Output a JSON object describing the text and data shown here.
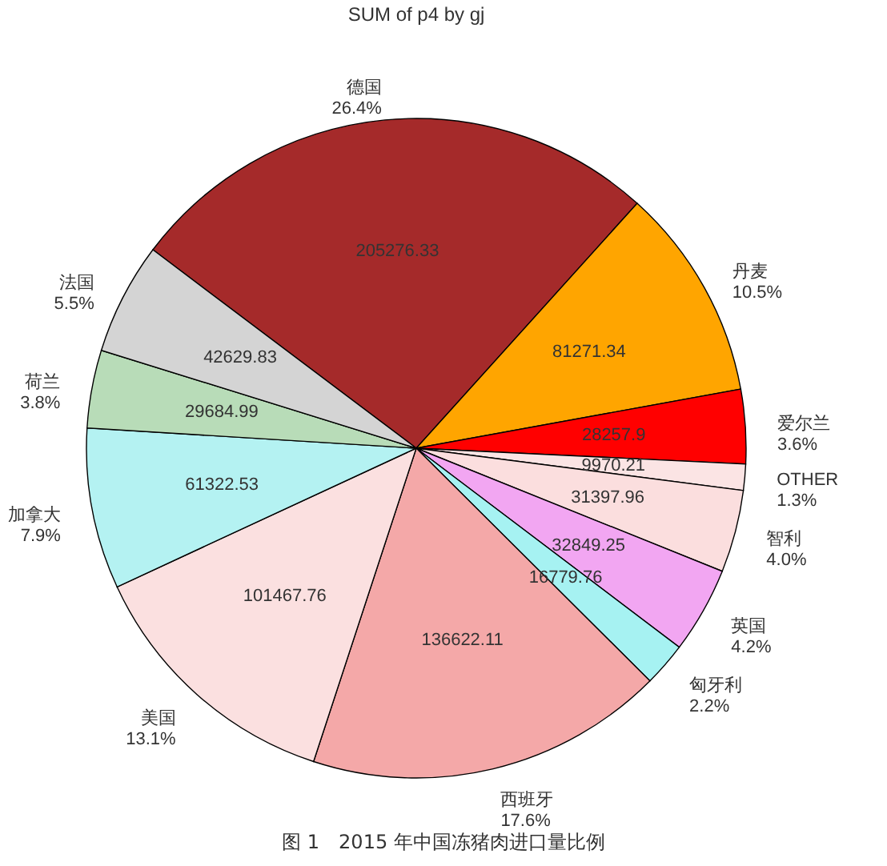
{
  "chart_data": {
    "type": "pie",
    "title": "SUM of p4 by gj",
    "categories": [
      "德国",
      "丹麦",
      "爱尔兰",
      "OTHER",
      "智利",
      "英国",
      "匈牙利",
      "西班牙",
      "美国",
      "加拿大",
      "荷兰",
      "法国"
    ],
    "values": [
      205276.33,
      81271.34,
      28257.9,
      9970.21,
      31397.96,
      32849.25,
      16779.76,
      136622.11,
      101467.76,
      61322.53,
      29684.99,
      42629.83
    ],
    "colors": [
      "#a52a2a",
      "#ffa500",
      "#ff0000",
      "#fbe4e4",
      "#fbdede",
      "#f2a6f2",
      "#a6f2f2",
      "#f4a8a8",
      "#fbe0e0",
      "#b4f2f2",
      "#b8dcb8",
      "#d4d4d4"
    ],
    "data_labels": true,
    "annotations": [
      {
        "text": "26.4%",
        "x": "德国"
      },
      {
        "text": "10.5%",
        "x": "丹麦"
      },
      {
        "text": "3.6%",
        "x": "爱尔兰"
      },
      {
        "text": "1.3%",
        "x": "OTHER"
      },
      {
        "text": "4.0%",
        "x": "智利"
      },
      {
        "text": "4.2%",
        "x": "英国"
      },
      {
        "text": "2.2%",
        "x": "匈牙利"
      },
      {
        "text": "17.6%",
        "x": "西班牙"
      },
      {
        "text": "13.1%",
        "x": "美国"
      },
      {
        "text": "7.9%",
        "x": "加拿大"
      },
      {
        "text": "3.8%",
        "x": "荷兰"
      },
      {
        "text": "5.5%",
        "x": "法国"
      },
      "图 1　2015 年中国冻猪肉进口量比例"
    ]
  }
}
